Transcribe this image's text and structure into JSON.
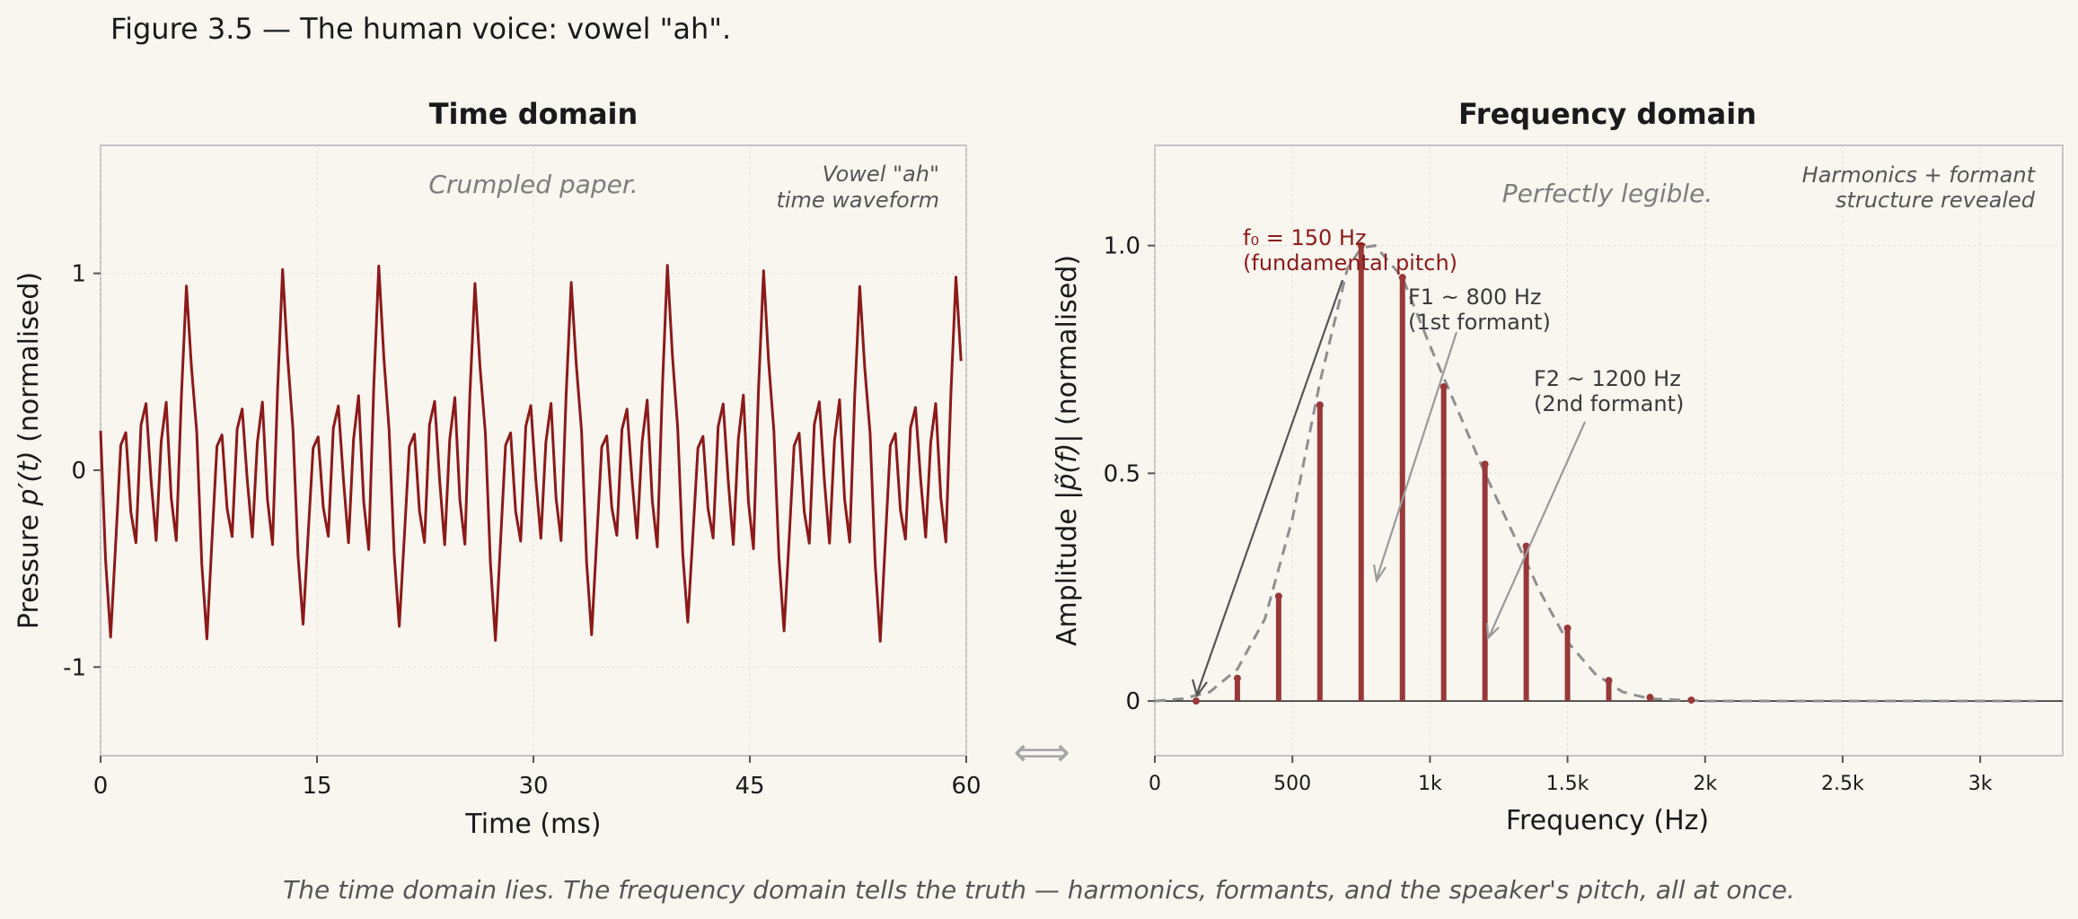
{
  "figure_title": "Figure 3.5 — The human voice: vowel \"ah\".",
  "caption": "The time domain lies.  The frequency domain tells the truth — harmonics, formants, and the speaker's pitch, all at once.",
  "arrow_glyph": "⟺",
  "colors": {
    "background": "#f9f6f0",
    "waveform": "#8b1a1a",
    "harmonic_bars": "#983838",
    "envelope": "#8f8f8f",
    "fundamental_label": "#8b1a1a"
  },
  "chart_data": [
    {
      "type": "line",
      "title": "Time domain",
      "xlabel": "Time  (ms)",
      "ylabel_prefix": "Pressure",
      "ylabel_symbol": "p′(t)",
      "ylabel_suffix": "(normalised)",
      "xlim": [
        0,
        60
      ],
      "ylim": [
        -1.45,
        1.65
      ],
      "xticks": [
        0,
        15,
        30,
        45,
        60
      ],
      "xtick_labels": [
        "0",
        "15",
        "30",
        "45",
        "60"
      ],
      "yticks": [
        -1,
        0,
        1
      ],
      "ytick_labels": [
        "-1",
        "0",
        "1"
      ],
      "grid": true,
      "period_ms": 6.667,
      "waveform_one_period": {
        "t_ms": [
          0,
          0.35,
          0.7,
          1.05,
          1.4,
          1.75,
          2.1,
          2.45,
          2.8,
          3.15,
          3.5,
          3.85,
          4.2,
          4.55,
          4.9,
          5.25,
          5.6,
          5.95,
          6.3,
          6.667
        ],
        "p": [
          0.2,
          -0.45,
          -0.82,
          -0.35,
          0.12,
          0.18,
          -0.2,
          -0.35,
          0.22,
          0.33,
          -0.05,
          -0.36,
          0.15,
          0.36,
          -0.15,
          -0.38,
          0.4,
          0.99,
          0.55,
          0.2
        ]
      },
      "annotations": {
        "center": "Crumpled paper.",
        "corner_line1": "Vowel  \"ah\"",
        "corner_line2": "time waveform"
      }
    },
    {
      "type": "bar",
      "title": "Frequency domain",
      "xlabel": "Frequency  (Hz)",
      "ylabel_prefix": "Amplitude",
      "ylabel_symbol": "|p̃(f)|",
      "ylabel_suffix": "(normalised)",
      "xlim": [
        0,
        3300
      ],
      "ylim": [
        -0.12,
        1.22
      ],
      "xticks": [
        0,
        500,
        1000,
        1500,
        2000,
        2500,
        3000
      ],
      "xtick_labels": [
        "0",
        "500",
        "1k",
        "1.5k",
        "2k",
        "2.5k",
        "3k"
      ],
      "yticks": [
        0,
        0.5,
        1.0
      ],
      "ytick_labels": [
        "0",
        "0.5",
        "1.0"
      ],
      "grid": true,
      "harmonics": {
        "x": [
          150,
          300,
          450,
          600,
          750,
          900,
          1050,
          1200,
          1350,
          1500,
          1650,
          1800,
          1950
        ],
        "y": [
          0.0,
          0.05,
          0.23,
          0.65,
          1.0,
          0.93,
          0.69,
          0.52,
          0.34,
          0.16,
          0.045,
          0.008,
          0.002
        ]
      },
      "envelope": {
        "x": [
          0,
          100,
          200,
          300,
          400,
          500,
          600,
          700,
          750,
          800,
          900,
          1000,
          1100,
          1200,
          1300,
          1400,
          1500,
          1600,
          1700,
          1800,
          2000,
          3200
        ],
        "y": [
          0,
          0.005,
          0.02,
          0.07,
          0.18,
          0.4,
          0.7,
          0.95,
          0.995,
          1.0,
          0.93,
          0.78,
          0.64,
          0.5,
          0.37,
          0.24,
          0.13,
          0.06,
          0.02,
          0.005,
          0,
          0
        ]
      },
      "annotations": {
        "center": "Perfectly legible.",
        "corner_line1": "Harmonics + formant",
        "corner_line2": "structure revealed",
        "f0_line1": "f₀ = 150 Hz",
        "f0_line2": "(fundamental pitch)",
        "f1_line1": "F1 ~ 800 Hz",
        "f1_line2": "(1st formant)",
        "f2_line1": "F2 ~ 1200 Hz",
        "f2_line2": "(2nd formant)"
      }
    }
  ]
}
